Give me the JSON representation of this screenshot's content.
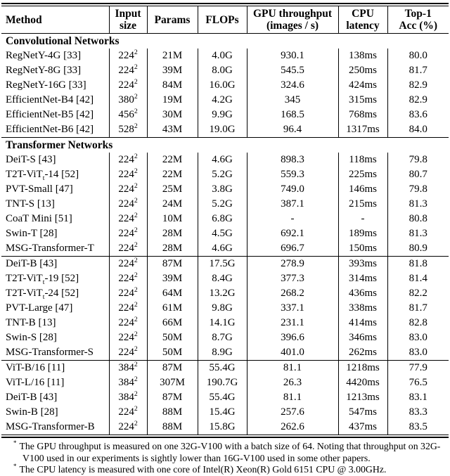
{
  "table": {
    "columns": [
      "Method",
      "Input\nsize",
      "Params",
      "FLOPs",
      "GPU throughput\n(images / s)",
      "CPU\nlatency",
      "Top-1\nAcc (%)"
    ],
    "blocks": [
      {
        "title": "Convolutional Networks",
        "rows": [
          {
            "method": "RegNetY-4G [33]",
            "input": "224",
            "input_exp": "2",
            "params": "21M",
            "flops": "4.0G",
            "gpu": "930.1",
            "cpu": "138ms",
            "acc": "80.0"
          },
          {
            "method": "RegNetY-8G [33]",
            "input": "224",
            "input_exp": "2",
            "params": "39M",
            "flops": "8.0G",
            "gpu": "545.5",
            "cpu": "250ms",
            "acc": "81.7"
          },
          {
            "method": "RegNetY-16G [33]",
            "input": "224",
            "input_exp": "2",
            "params": "84M",
            "flops": "16.0G",
            "gpu": "324.6",
            "cpu": "424ms",
            "acc": "82.9"
          },
          {
            "method": "EfficientNet-B4 [42]",
            "input": "380",
            "input_exp": "2",
            "params": "19M",
            "flops": "4.2G",
            "gpu": "345",
            "cpu": "315ms",
            "acc": "82.9"
          },
          {
            "method": "EfficientNet-B5 [42]",
            "input": "456",
            "input_exp": "2",
            "params": "30M",
            "flops": "9.9G",
            "gpu": "168.5",
            "cpu": "768ms",
            "acc": "83.6"
          },
          {
            "method": "EfficientNet-B6 [42]",
            "input": "528",
            "input_exp": "2",
            "params": "43M",
            "flops": "19.0G",
            "gpu": "96.4",
            "cpu": "1317ms",
            "acc": "84.0"
          }
        ]
      },
      {
        "title": "Transformer Networks",
        "rows": [
          {
            "method": "DeiT-S [43]",
            "input": "224",
            "input_exp": "2",
            "params": "22M",
            "flops": "4.6G",
            "gpu": "898.3",
            "cpu": "118ms",
            "acc": "79.8"
          },
          {
            "method": "T2T-ViT",
            "method_sub": "t",
            "method_tail": "-14 [52]",
            "input": "224",
            "input_exp": "2",
            "params": "22M",
            "flops": "5.2G",
            "gpu": "559.3",
            "cpu": "225ms",
            "acc": "80.7"
          },
          {
            "method": "PVT-Small [47]",
            "input": "224",
            "input_exp": "2",
            "params": "25M",
            "flops": "3.8G",
            "gpu": "749.0",
            "cpu": "146ms",
            "acc": "79.8"
          },
          {
            "method": "TNT-S [13]",
            "input": "224",
            "input_exp": "2",
            "params": "24M",
            "flops": "5.2G",
            "gpu": "387.1",
            "cpu": "215ms",
            "acc": "81.3"
          },
          {
            "method": "CoaT Mini [51]",
            "input": "224",
            "input_exp": "2",
            "params": "10M",
            "flops": "6.8G",
            "gpu": "-",
            "cpu": "-",
            "acc": "80.8"
          },
          {
            "method": "Swin-T [28]",
            "input": "224",
            "input_exp": "2",
            "params": "28M",
            "flops": "4.5G",
            "gpu": "692.1",
            "cpu": "189ms",
            "acc": "81.3"
          },
          {
            "method": "MSG-Transformer-T",
            "input": "224",
            "input_exp": "2",
            "params": "28M",
            "flops": "4.6G",
            "gpu": "696.7",
            "cpu": "150ms",
            "acc": "80.9"
          }
        ]
      },
      {
        "title": null,
        "rows": [
          {
            "method": "DeiT-B [43]",
            "input": "224",
            "input_exp": "2",
            "params": "87M",
            "flops": "17.5G",
            "gpu": "278.9",
            "cpu": "393ms",
            "acc": "81.8"
          },
          {
            "method": "T2T-ViT",
            "method_sub": "t",
            "method_tail": "-19 [52]",
            "input": "224",
            "input_exp": "2",
            "params": "39M",
            "flops": "8.4G",
            "gpu": "377.3",
            "cpu": "314ms",
            "acc": "81.4"
          },
          {
            "method": "T2T-ViT",
            "method_sub": "t",
            "method_tail": "-24 [52]",
            "input": "224",
            "input_exp": "2",
            "params": "64M",
            "flops": "13.2G",
            "gpu": "268.2",
            "cpu": "436ms",
            "acc": "82.2"
          },
          {
            "method": "PVT-Large [47]",
            "input": "224",
            "input_exp": "2",
            "params": "61M",
            "flops": "9.8G",
            "gpu": "337.1",
            "cpu": "338ms",
            "acc": "81.7"
          },
          {
            "method": "TNT-B [13]",
            "input": "224",
            "input_exp": "2",
            "params": "66M",
            "flops": "14.1G",
            "gpu": "231.1",
            "cpu": "414ms",
            "acc": "82.8"
          },
          {
            "method": "Swin-S [28]",
            "input": "224",
            "input_exp": "2",
            "params": "50M",
            "flops": "8.7G",
            "gpu": "396.6",
            "cpu": "346ms",
            "acc": "83.0"
          },
          {
            "method": "MSG-Transformer-S",
            "input": "224",
            "input_exp": "2",
            "params": "50M",
            "flops": "8.9G",
            "gpu": "401.0",
            "cpu": "262ms",
            "acc": "83.0"
          }
        ]
      },
      {
        "title": null,
        "rows": [
          {
            "method": "ViT-B/16 [11]",
            "input": "384",
            "input_exp": "2",
            "params": "87M",
            "flops": "55.4G",
            "gpu": "81.1",
            "cpu": "1218ms",
            "acc": "77.9"
          },
          {
            "method": "ViT-L/16 [11]",
            "input": "384",
            "input_exp": "2",
            "params": "307M",
            "flops": "190.7G",
            "gpu": "26.3",
            "cpu": "4420ms",
            "acc": "76.5"
          },
          {
            "method": "DeiT-B [43]",
            "input": "384",
            "input_exp": "2",
            "params": "87M",
            "flops": "55.4G",
            "gpu": "81.1",
            "cpu": "1213ms",
            "acc": "83.1"
          },
          {
            "method": "Swin-B [28]",
            "input": "224",
            "input_exp": "2",
            "params": "88M",
            "flops": "15.4G",
            "gpu": "257.6",
            "cpu": "547ms",
            "acc": "83.3"
          },
          {
            "method": "MSG-Transformer-B",
            "input": "224",
            "input_exp": "2",
            "params": "88M",
            "flops": "15.8G",
            "gpu": "262.6",
            "cpu": "437ms",
            "acc": "83.5"
          }
        ]
      }
    ]
  },
  "footnotes": [
    {
      "marker": "*",
      "text": "The GPU throughput is measured on one 32G-V100 with a batch size of 64. Noting that throughput on 32G-V100 used in our experiments is sightly lower than 16G-V100 used in some other papers."
    },
    {
      "marker": "*",
      "text": "The CPU latency is measured with one core of Intel(R) Xeon(R) Gold 6151 CPU @ 3.00GHz."
    }
  ]
}
